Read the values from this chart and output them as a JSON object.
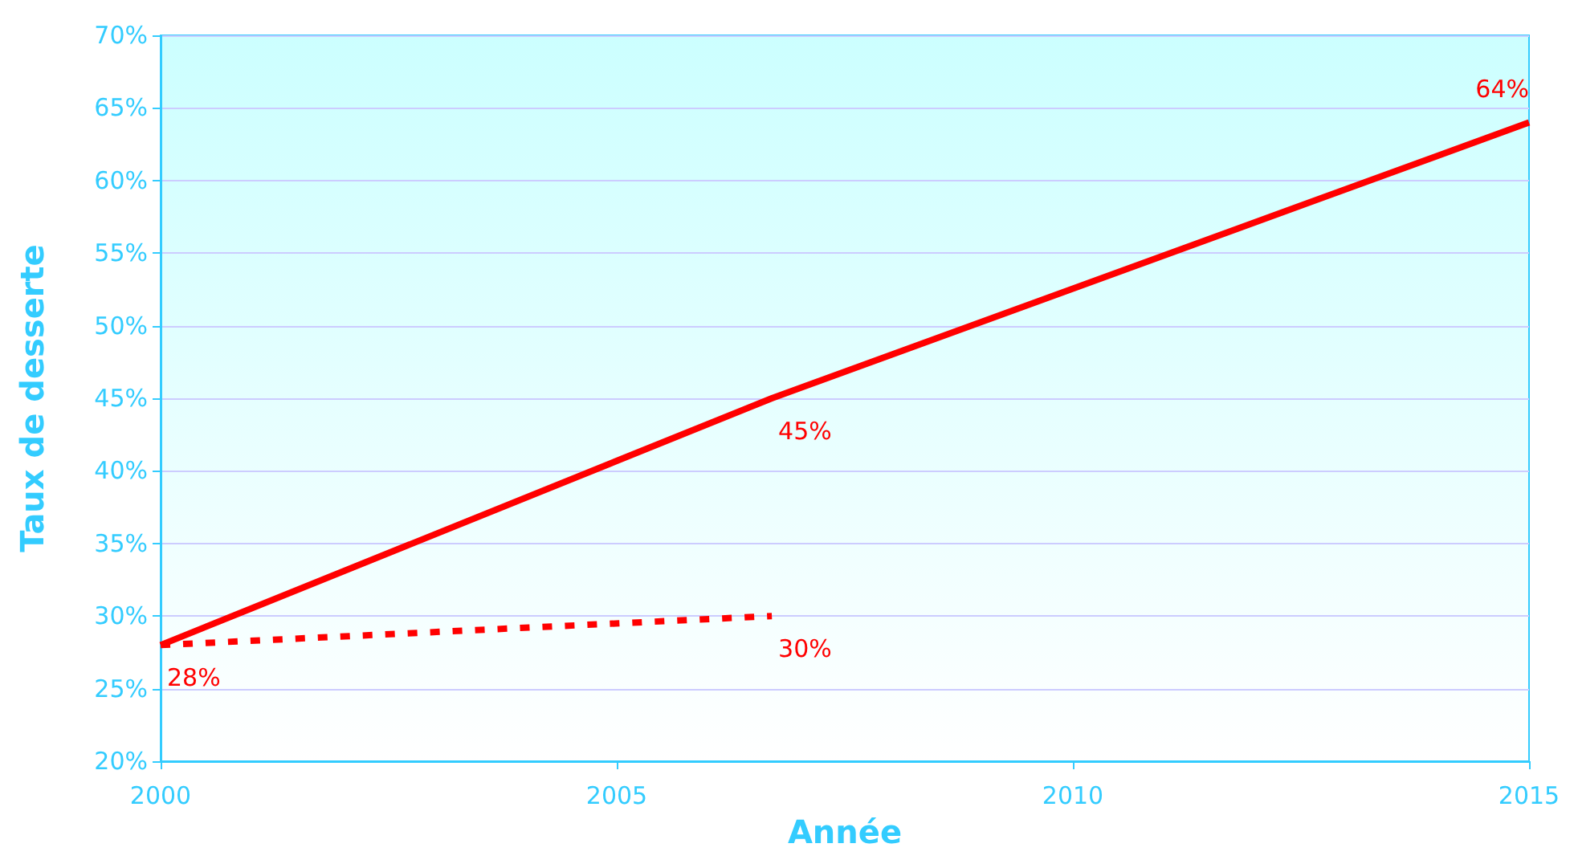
{
  "chart_data": {
    "type": "line",
    "xlabel": "Année",
    "ylabel": "Taux de desserte",
    "series": [
      {
        "color": "#ff0000",
        "line_style": "solid",
        "x": [
          2000,
          2006.7,
          2015
        ],
        "values": [
          28,
          45,
          64
        ],
        "value_labels": [
          "28%",
          "45%",
          "64%"
        ]
      },
      {
        "color": "#ff0000",
        "line_style": "dashed",
        "x": [
          2000,
          2006.7
        ],
        "values": [
          28,
          30
        ],
        "value_labels": [
          null,
          "30%"
        ]
      }
    ],
    "xlim": [
      2000,
      2015
    ],
    "xticks": [
      2000,
      2005,
      2010,
      2015
    ],
    "ylim": [
      20,
      70
    ],
    "yticks": [
      {
        "value": 20,
        "label": "20%"
      },
      {
        "value": 25,
        "label": "25%"
      },
      {
        "value": 30,
        "label": "30%"
      },
      {
        "value": 35,
        "label": "35%"
      },
      {
        "value": 40,
        "label": "40%"
      },
      {
        "value": 45,
        "label": "45%"
      },
      {
        "value": 50,
        "label": "50%"
      },
      {
        "value": 55,
        "label": "55%"
      },
      {
        "value": 60,
        "label": "60%"
      },
      {
        "value": 65,
        "label": "65%"
      },
      {
        "value": 70,
        "label": "70%"
      }
    ],
    "grid": "y",
    "marker": "none"
  }
}
